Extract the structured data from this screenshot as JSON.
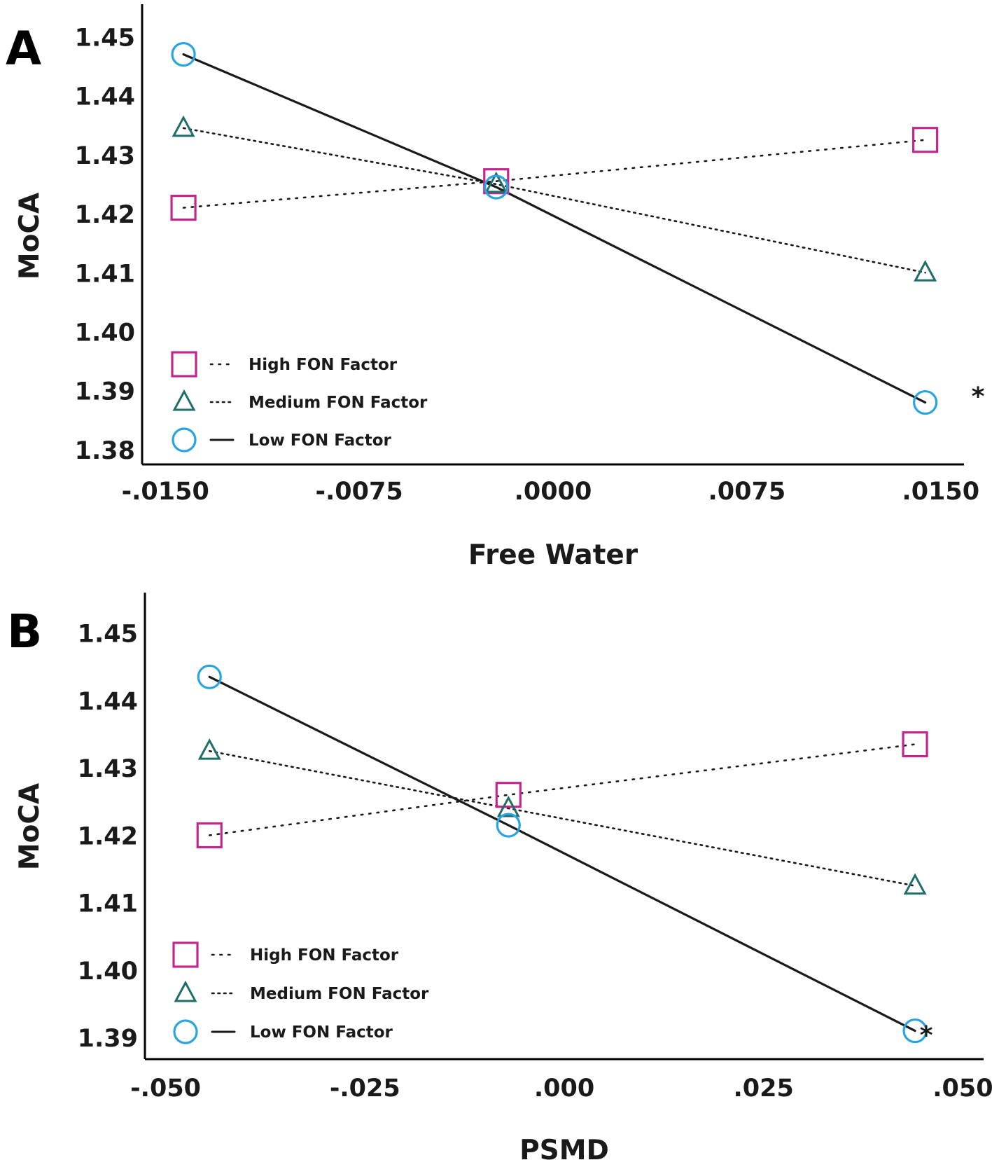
{
  "chart_data": [
    {
      "type": "line",
      "panel": "A",
      "xlabel": "Free Water",
      "ylabel": "MoCA",
      "xlim": [
        -0.0159,
        0.0159
      ],
      "ylim": [
        1.3775,
        1.4555
      ],
      "xticks": [
        -0.015,
        -0.0075,
        0.0,
        0.0075,
        0.015
      ],
      "xtick_labels": [
        "-.0150",
        "-.0075",
        ".0000",
        ".0075",
        ".0150"
      ],
      "yticks": [
        1.38,
        1.39,
        1.4,
        1.41,
        1.42,
        1.43,
        1.44,
        1.45
      ],
      "ytick_labels": [
        "1.38",
        "1.39",
        "1.40",
        "1.41",
        "1.42",
        "1.43",
        "1.44",
        "1.45"
      ],
      "x": [
        -0.0143,
        -0.0022,
        0.0144
      ],
      "series": [
        {
          "name": "High FON Factor",
          "marker": "square",
          "line": "dotted",
          "color": "#c2278e",
          "values": [
            1.421,
            1.4255,
            1.4325
          ]
        },
        {
          "name": "Medium FON Factor",
          "marker": "triangle",
          "line": "dense-dotted",
          "color": "#1f6e68",
          "values": [
            1.4345,
            1.425,
            1.41
          ]
        },
        {
          "name": "Low FON Factor",
          "marker": "circle",
          "line": "solid",
          "color": "#2aa4e0",
          "values": [
            1.447,
            1.4245,
            1.388
          ]
        }
      ],
      "annotation": "*"
    },
    {
      "type": "line",
      "panel": "B",
      "xlabel": "PSMD",
      "ylabel": "MoCA",
      "xlim": [
        -0.0526,
        0.0526
      ],
      "ylim": [
        1.3868,
        1.456
      ],
      "xticks": [
        -0.05,
        -0.025,
        0.0,
        0.025,
        0.05
      ],
      "xtick_labels": [
        "-.050",
        "-.025",
        ".000",
        ".025",
        ".050"
      ],
      "yticks": [
        1.39,
        1.4,
        1.41,
        1.42,
        1.43,
        1.44,
        1.45
      ],
      "ytick_labels": [
        "1.39",
        "1.40",
        "1.41",
        "1.42",
        "1.43",
        "1.44",
        "1.45"
      ],
      "x": [
        -0.0445,
        -0.007,
        0.044
      ],
      "series": [
        {
          "name": "High FON Factor",
          "marker": "square",
          "line": "dotted",
          "color": "#c2278e",
          "values": [
            1.42,
            1.426,
            1.4335
          ]
        },
        {
          "name": "Medium FON Factor",
          "marker": "triangle",
          "line": "dense-dotted",
          "color": "#1f6e68",
          "values": [
            1.4325,
            1.424,
            1.4125
          ]
        },
        {
          "name": "Low FON Factor",
          "marker": "circle",
          "line": "solid",
          "color": "#2aa4e0",
          "values": [
            1.4435,
            1.4215,
            1.391
          ]
        }
      ],
      "annotation": "*"
    }
  ]
}
